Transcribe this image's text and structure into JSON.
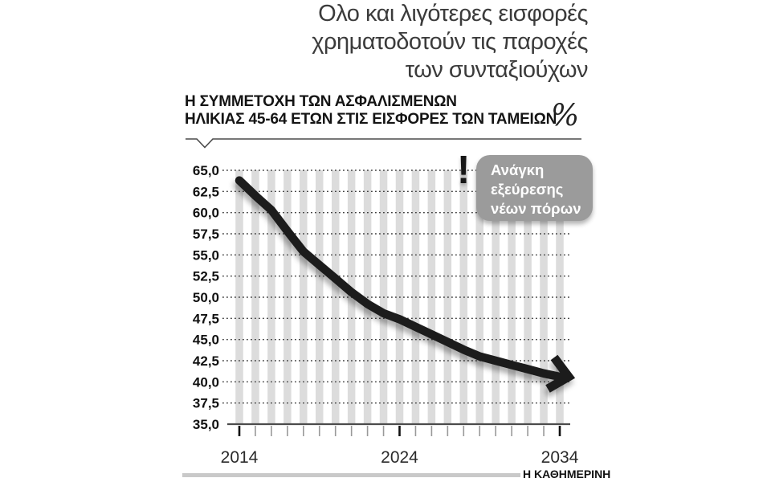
{
  "title": {
    "lines": [
      "Ολο και λιγότερες εισφορές",
      "χρηματοδοτούν τις παροχές",
      "των συνταξιούχων"
    ]
  },
  "subtitle": {
    "lines": [
      "Η ΣΥΜΜΕΤΟΧΗ ΤΩΝ ΑΣΦΑΛΙΣΜΕΝΩΝ",
      "ΗΛΙΚΙΑΣ 45-64 ΕΤΩΝ ΣΤΙΣ ΕΙΣΦΟΡΕΣ ΤΩΝ ΤΑΜΕΙΩΝ"
    ],
    "unit": "%"
  },
  "callout": {
    "mark": "!",
    "lines": [
      "Ανάγκη",
      "εξεύρεσης",
      "νέων πόρων"
    ]
  },
  "chart_data": {
    "type": "line",
    "title": "Η ΣΥΜΜΕΤΟΧΗ ΤΩΝ ΑΣΦΑΛΙΣΜΕΝΩΝ ΗΛΙΚΙΑΣ 45-64 ΕΤΩΝ ΣΤΙΣ ΕΙΣΦΟΡΕΣ ΤΩΝ ΤΑΜΕΙΩΝ",
    "ylabel": "%",
    "x": [
      2014,
      2015,
      2016,
      2017,
      2018,
      2019,
      2020,
      2021,
      2022,
      2023,
      2024,
      2025,
      2026,
      2027,
      2028,
      2029,
      2030,
      2031,
      2032,
      2033,
      2034
    ],
    "values": [
      63.8,
      62.0,
      60.3,
      57.8,
      55.4,
      53.8,
      52.2,
      50.6,
      49.2,
      48.1,
      47.4,
      46.5,
      45.6,
      44.7,
      43.8,
      43.0,
      42.5,
      42.0,
      41.5,
      41.0,
      40.6
    ],
    "ylim": [
      35,
      65
    ],
    "ytick_labels": [
      "65,0",
      "62,5",
      "60,0",
      "57,5",
      "55,0",
      "52,5",
      "50,0",
      "47,5",
      "45,0",
      "42,5",
      "40,0",
      "37,5",
      "35,0"
    ],
    "xticks": [
      2014,
      2024,
      2034
    ],
    "xtick_labels": [
      "2014",
      "2024",
      "2034"
    ],
    "grid": "dotted-horizontal",
    "legend": "none",
    "annotation": "Ανάγκη εξεύρεσης νέων πόρων",
    "line_end": "arrow-down-right"
  },
  "footer": {
    "brand": "Η ΚΑΘΗΜΕΡΙΝΗ"
  },
  "colors": {
    "line": "#1e1e1e",
    "stripe": "#dcdcdc",
    "grid": "#3f3f3f",
    "axis": "#4c4c4c",
    "tick_major": "#111111",
    "tick_minor": "#999999",
    "callout_bg": "#9b9b9b",
    "callout_text": "#ffffff",
    "footer_bar": "#c9c9c9",
    "title_text": "#3b3b3b"
  }
}
